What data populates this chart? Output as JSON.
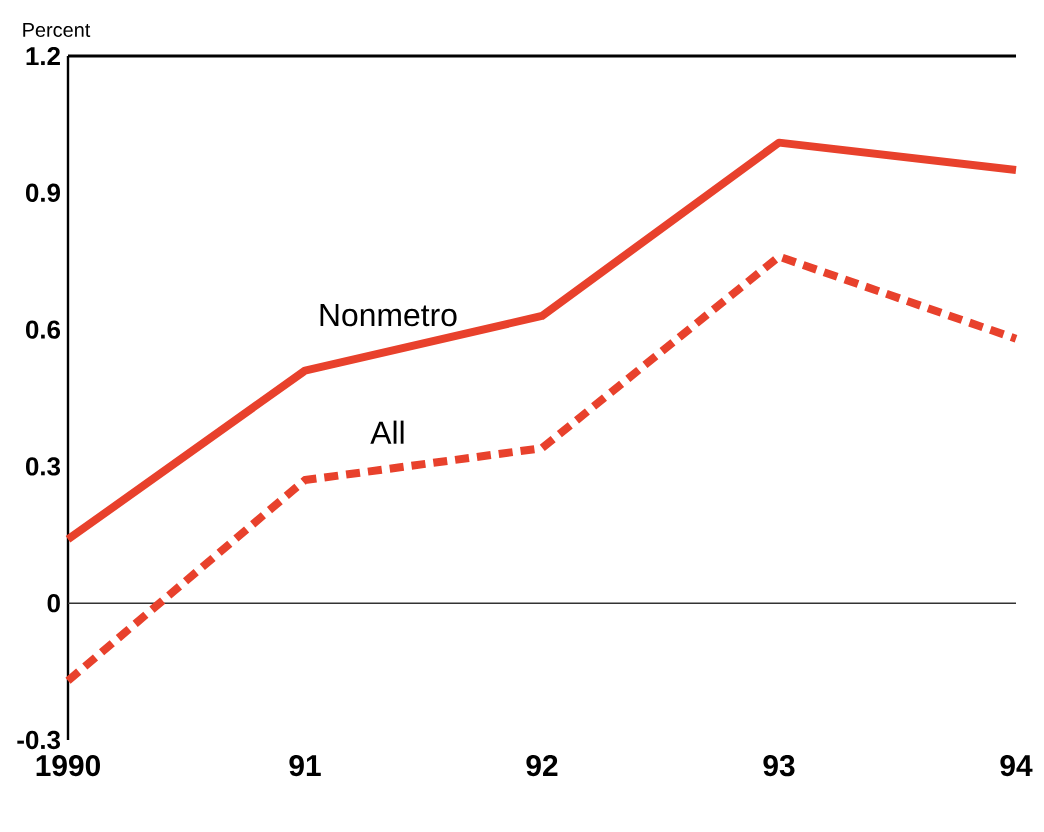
{
  "chart_data": {
    "type": "line",
    "ylabel": "Percent",
    "categories": [
      "1990",
      "91",
      "92",
      "93",
      "94"
    ],
    "series": [
      {
        "name": "Nonmetro",
        "color": "#e8412c",
        "values": [
          0.14,
          0.51,
          0.63,
          1.01,
          0.95
        ],
        "line_style": "solid"
      },
      {
        "name": "All",
        "color": "#e8412c",
        "values": [
          -0.17,
          0.27,
          0.34,
          0.76,
          0.58
        ],
        "line_style": "dashed"
      }
    ],
    "ylim": [
      -0.3,
      1.2
    ],
    "yticks": [
      -0.3,
      0,
      0.3,
      0.6,
      0.9,
      1.2
    ],
    "ref_lines": [
      {
        "axis": "y",
        "value": 0,
        "color": "#333333"
      }
    ],
    "grid": false,
    "marker": "none"
  }
}
